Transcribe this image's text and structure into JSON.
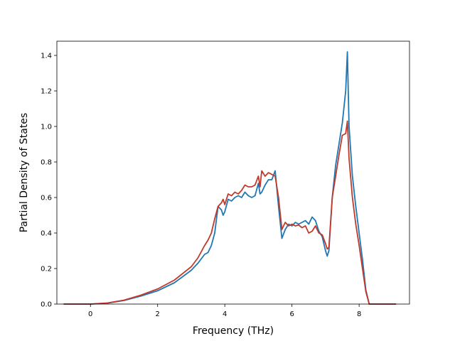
{
  "chart_data": {
    "type": "line",
    "xlabel": "Frequency (THz)",
    "ylabel": "Partial Density of States",
    "xlim": [
      -1.0,
      9.5
    ],
    "ylim": [
      0.0,
      1.48
    ],
    "xticks": [
      0,
      2,
      4,
      6,
      8
    ],
    "yticks": [
      0.0,
      0.2,
      0.4,
      0.6,
      0.8,
      1.0,
      1.2,
      1.4
    ],
    "xtick_labels": [
      "0",
      "2",
      "4",
      "6",
      "8"
    ],
    "ytick_labels": [
      "0.0",
      "0.2",
      "0.4",
      "0.6",
      "0.8",
      "1.0",
      "1.2",
      "1.4"
    ],
    "grid": false,
    "series": [
      {
        "color": "#1f77b4",
        "x": [
          -0.8,
          0.0,
          0.5,
          1.0,
          1.5,
          2.0,
          2.5,
          3.0,
          3.2,
          3.4,
          3.5,
          3.6,
          3.7,
          3.8,
          3.9,
          3.95,
          4.0,
          4.1,
          4.2,
          4.3,
          4.4,
          4.5,
          4.6,
          4.7,
          4.8,
          4.9,
          5.0,
          5.05,
          5.1,
          5.2,
          5.3,
          5.4,
          5.5,
          5.6,
          5.7,
          5.8,
          5.9,
          6.0,
          6.1,
          6.2,
          6.3,
          6.4,
          6.5,
          6.6,
          6.7,
          6.8,
          6.9,
          7.0,
          7.05,
          7.1,
          7.2,
          7.3,
          7.4,
          7.5,
          7.6,
          7.65,
          7.7,
          7.8,
          7.9,
          8.0,
          8.1,
          8.2,
          8.3,
          8.5,
          9.1
        ],
        "y": [
          0.0,
          0.0,
          0.005,
          0.02,
          0.045,
          0.075,
          0.12,
          0.19,
          0.23,
          0.28,
          0.29,
          0.33,
          0.4,
          0.55,
          0.53,
          0.5,
          0.52,
          0.59,
          0.58,
          0.6,
          0.61,
          0.6,
          0.63,
          0.61,
          0.6,
          0.61,
          0.68,
          0.62,
          0.63,
          0.67,
          0.7,
          0.7,
          0.75,
          0.55,
          0.37,
          0.42,
          0.45,
          0.44,
          0.46,
          0.45,
          0.46,
          0.47,
          0.45,
          0.49,
          0.47,
          0.41,
          0.38,
          0.3,
          0.27,
          0.3,
          0.6,
          0.78,
          0.9,
          1.02,
          1.2,
          1.42,
          1.0,
          0.72,
          0.55,
          0.4,
          0.25,
          0.08,
          0.0,
          0.0,
          0.0
        ]
      },
      {
        "color": "#c0392b",
        "x": [
          -0.8,
          0.0,
          0.5,
          1.0,
          1.5,
          2.0,
          2.5,
          3.0,
          3.2,
          3.4,
          3.5,
          3.6,
          3.7,
          3.8,
          3.9,
          3.95,
          4.0,
          4.1,
          4.2,
          4.3,
          4.4,
          4.5,
          4.6,
          4.7,
          4.8,
          4.9,
          5.0,
          5.05,
          5.1,
          5.2,
          5.3,
          5.4,
          5.5,
          5.6,
          5.7,
          5.8,
          5.9,
          6.0,
          6.1,
          6.2,
          6.3,
          6.4,
          6.5,
          6.6,
          6.7,
          6.8,
          6.9,
          7.0,
          7.05,
          7.1,
          7.2,
          7.3,
          7.4,
          7.5,
          7.6,
          7.65,
          7.7,
          7.8,
          7.9,
          8.0,
          8.1,
          8.2,
          8.3,
          8.5,
          9.1
        ],
        "y": [
          0.0,
          0.0,
          0.006,
          0.022,
          0.05,
          0.085,
          0.135,
          0.21,
          0.26,
          0.33,
          0.36,
          0.4,
          0.48,
          0.55,
          0.57,
          0.59,
          0.56,
          0.62,
          0.61,
          0.63,
          0.62,
          0.64,
          0.67,
          0.66,
          0.66,
          0.67,
          0.72,
          0.66,
          0.75,
          0.72,
          0.74,
          0.73,
          0.72,
          0.6,
          0.42,
          0.46,
          0.44,
          0.45,
          0.44,
          0.445,
          0.43,
          0.44,
          0.4,
          0.41,
          0.44,
          0.4,
          0.39,
          0.34,
          0.31,
          0.32,
          0.6,
          0.72,
          0.84,
          0.95,
          0.96,
          1.03,
          0.82,
          0.6,
          0.45,
          0.33,
          0.2,
          0.07,
          0.0,
          0.0,
          0.0
        ]
      }
    ]
  }
}
